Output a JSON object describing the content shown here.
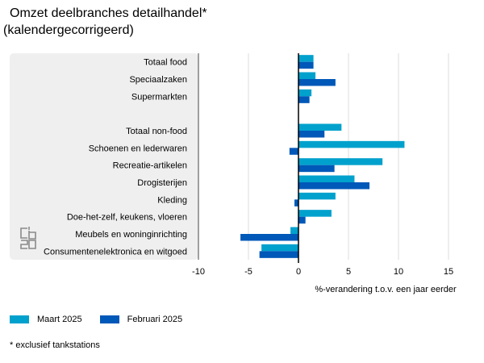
{
  "title_line1": "Omzet deelbranches detailhandel*",
  "title_line2": "(kalendergecorrigeerd)",
  "footnote": "* exclusief tankstations",
  "logo": "cbs-logo",
  "colors": {
    "series1": "#00a1cd",
    "series2": "#0058b8",
    "panel": "#efefef",
    "grid": "#dddddd"
  },
  "chart_data": {
    "type": "bar",
    "orientation": "horizontal",
    "categories": [
      "Totaal food",
      "Speciaalzaken",
      "Supermarkten",
      "",
      "Totaal non-food",
      "Schoenen en lederwaren",
      "Recreatie-artikelen",
      "Drogisterijen",
      "Kleding",
      "Doe-het-zelf, keukens, vloeren",
      "Meubels en woninginrichting",
      "Consumentenelektronica en witgoed"
    ],
    "series": [
      {
        "name": "Maart 2025",
        "values": [
          1.5,
          1.7,
          1.3,
          null,
          4.3,
          10.6,
          8.4,
          5.6,
          3.7,
          3.3,
          -0.8,
          -3.7
        ]
      },
      {
        "name": "Februari 2025",
        "values": [
          1.5,
          3.7,
          1.1,
          null,
          2.6,
          -0.9,
          3.6,
          7.1,
          -0.4,
          0.7,
          -5.8,
          -3.9
        ]
      }
    ],
    "xlabel": "%-verandering t.o.v. een jaar eerder",
    "xlim": [
      -10,
      15
    ],
    "xticks": [
      -10,
      -5,
      0,
      5,
      10,
      15
    ],
    "grid": true,
    "legend": "bottom-left"
  }
}
